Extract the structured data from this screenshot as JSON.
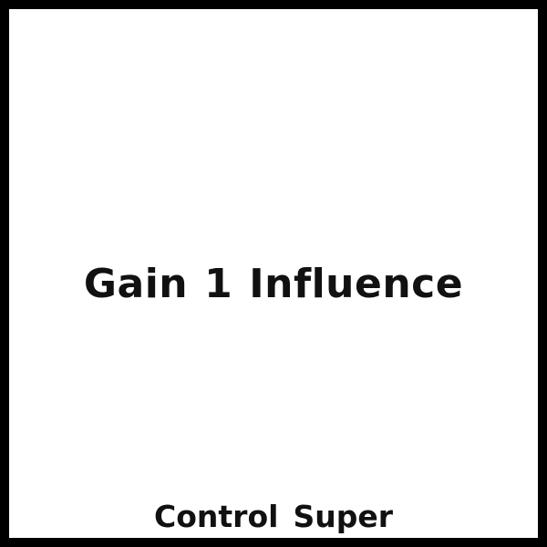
{
  "card": {
    "effect": {
      "verb": "Gain",
      "amount": "1",
      "resource": "Influence"
    },
    "tags": [
      "Control",
      "Super"
    ]
  },
  "colors": {
    "border": "#000000",
    "background": "#ffffff",
    "text": "#111111"
  }
}
